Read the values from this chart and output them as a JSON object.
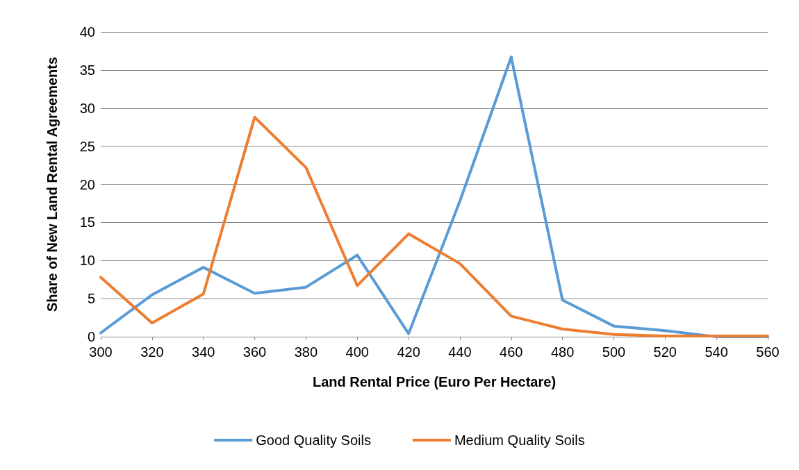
{
  "chart_data": {
    "type": "line",
    "xlabel": "Land Rental Price (Euro Per Hectare)",
    "ylabel": "Share of New Land Rental Agreements",
    "x": [
      300,
      320,
      340,
      360,
      380,
      400,
      420,
      440,
      460,
      480,
      500,
      520,
      540,
      560
    ],
    "series": [
      {
        "name": "Good Quality Soils",
        "color": "#5b9bd5",
        "values": [
          0.5,
          5.5,
          9.1,
          5.7,
          6.5,
          10.7,
          0.4,
          17.8,
          36.7,
          4.8,
          1.4,
          0.8,
          0,
          0
        ]
      },
      {
        "name": "Medium Quality Soils",
        "color": "#ed7d31",
        "values": [
          7.8,
          1.8,
          5.6,
          28.8,
          22.2,
          6.7,
          13.5,
          9.6,
          2.7,
          1.0,
          0.3,
          0.1,
          0.1,
          0.1
        ]
      }
    ],
    "xlim": [
      300,
      560
    ],
    "xticks": [
      300,
      320,
      340,
      360,
      380,
      400,
      420,
      440,
      460,
      480,
      500,
      520,
      540,
      560
    ],
    "ylim": [
      0,
      40
    ],
    "yticks": [
      0,
      5,
      10,
      15,
      20,
      25,
      30,
      35,
      40
    ],
    "grid": "y",
    "legend": "bottom",
    "marker": "none",
    "line_style": "solid"
  }
}
